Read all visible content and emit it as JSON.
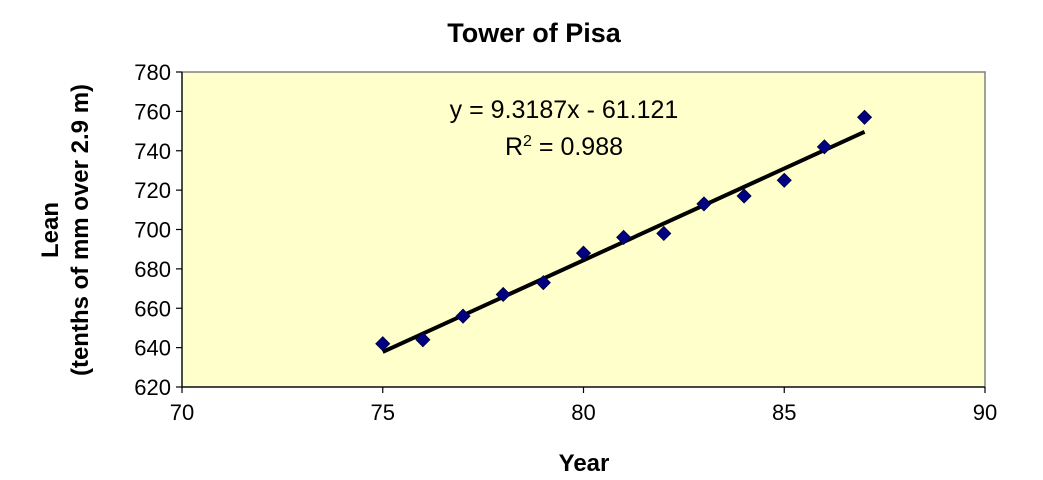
{
  "chart_data": {
    "type": "scatter",
    "title": "Tower of Pisa",
    "xlabel": "Year",
    "ylabel_lines": [
      "Lean",
      "(tenths of mm over 2.9 m)"
    ],
    "xlim": [
      70,
      90
    ],
    "ylim": [
      620,
      780
    ],
    "xticks": [
      70,
      75,
      80,
      85,
      90
    ],
    "yticks": [
      620,
      640,
      660,
      680,
      700,
      720,
      740,
      760,
      780
    ],
    "grid": false,
    "legend": "none",
    "series": [
      {
        "x": [
          75,
          76,
          77,
          78,
          79,
          80,
          81,
          82,
          83,
          84,
          85,
          86,
          87
        ],
        "y": [
          642,
          644,
          656,
          667,
          673,
          688,
          696,
          698,
          713,
          717,
          725,
          742,
          757
        ],
        "color": "#000080",
        "marker": "diamond"
      }
    ],
    "trendline": {
      "slope": 9.3187,
      "intercept": -61.121,
      "x_range": [
        75,
        87
      ],
      "equation_text": "y = 9.3187x - 61.121",
      "r2_prefix": "R",
      "r2_sup": "2",
      "r2_suffix": " = 0.988"
    },
    "plot_background": "#ffffcc"
  }
}
